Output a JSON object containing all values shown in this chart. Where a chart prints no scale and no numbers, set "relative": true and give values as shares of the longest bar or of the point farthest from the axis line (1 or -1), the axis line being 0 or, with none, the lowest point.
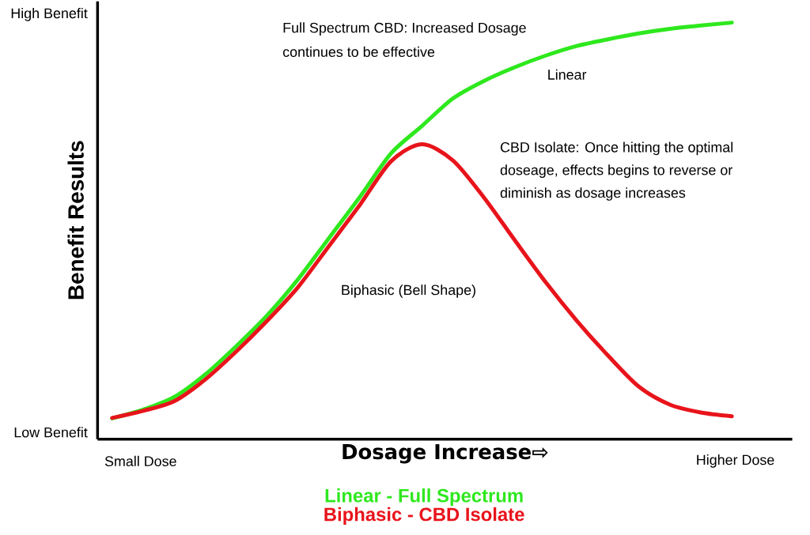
{
  "chart_data": {
    "type": "line",
    "relative": true,
    "xlabel": "Dosage Increase⇨",
    "ylabel": "Benefit Results",
    "categories": [
      null,
      null,
      null,
      null,
      null,
      null,
      null,
      null,
      null,
      null,
      null,
      null,
      null,
      null,
      null,
      null,
      null,
      null,
      null,
      null,
      null
    ],
    "series": [
      {
        "name": "Linear - Full Spectrum",
        "color": "#2ee81e",
        "values": [
          0.05,
          0.071,
          0.101,
          0.155,
          0.223,
          0.297,
          0.384,
          0.483,
          0.582,
          0.686,
          0.752,
          0.818,
          0.86,
          0.893,
          0.921,
          0.944,
          0.96,
          0.974,
          0.985,
          0.993,
          1
        ]
      },
      {
        "name": "Biphasic - CBD Isolate",
        "color": "#e8141b",
        "values": [
          0.051,
          0.068,
          0.091,
          0.143,
          0.21,
          0.284,
          0.365,
          0.464,
          0.563,
          0.667,
          0.708,
          0.669,
          0.58,
          0.477,
          0.376,
          0.284,
          0.201,
          0.126,
          0.083,
          0.064,
          0.055
        ]
      }
    ],
    "annotations": [
      "High Benefit",
      "Low Benefit",
      "Small Dose",
      "Higher Dose",
      "Full Spectrum CBD: Increased Dosage",
      "continues to be effective",
      "Linear",
      "CBD Isolate: Once hitting the optimal",
      "doseage, effects begins to reverse or",
      "diminish as dosage increases",
      "Biphasic (Bell Shape)"
    ],
    "legend": "bottom",
    "marker": "none",
    "line_style": "solid"
  }
}
